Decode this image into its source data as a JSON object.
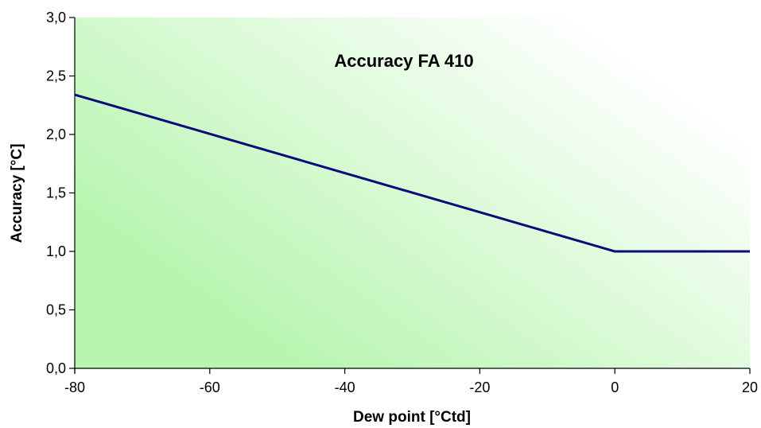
{
  "chart_data": {
    "type": "line",
    "title": "Accuracy FA 410",
    "xlabel": "Dew point [°Ctd]",
    "ylabel": "Accuracy [°C]",
    "xlim": [
      -80,
      20
    ],
    "ylim": [
      0,
      3
    ],
    "x_ticks": [
      -80,
      -60,
      -40,
      -20,
      0,
      20
    ],
    "x_tick_labels": [
      "-80",
      "-60",
      "-40",
      "-20",
      "0",
      "20"
    ],
    "y_ticks": [
      0,
      0.5,
      1,
      1.5,
      2,
      2.5,
      3
    ],
    "y_tick_labels": [
      "0,0",
      "0,5",
      "1,0",
      "1,5",
      "2,0",
      "2,5",
      "3,0"
    ],
    "grid": false,
    "legend": false,
    "series": [
      {
        "x": [
          -80,
          0,
          20
        ],
        "y": [
          2.34,
          1.0,
          1.0
        ],
        "color": "#0b0b7a"
      }
    ],
    "background": {
      "gradient_from": "#b8f5b0",
      "gradient_to": "#ffffff"
    }
  }
}
